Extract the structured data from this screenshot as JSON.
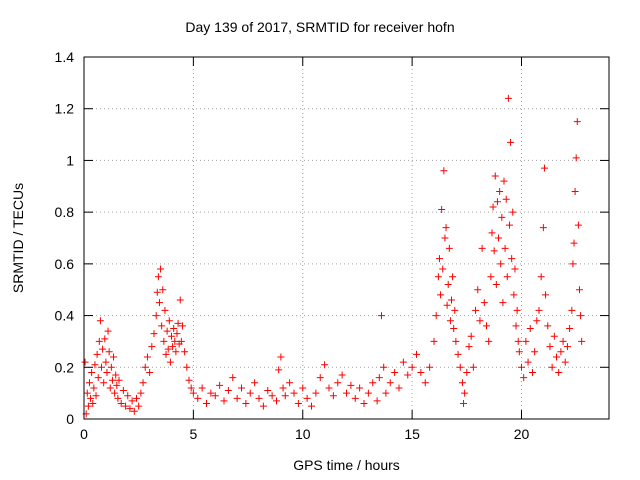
{
  "chart_data": {
    "type": "scatter",
    "title": "Day 139 of 2017, SRMTID for receiver hofn",
    "xlabel": "GPS time / hours",
    "ylabel": "SRMTID / TECUs",
    "xlim": [
      0,
      24
    ],
    "ylim": [
      0,
      1.4
    ],
    "xticks": [
      0,
      5,
      10,
      15,
      20
    ],
    "yticks": [
      0,
      0.2,
      0.4,
      0.6,
      0.8,
      1,
      1.2,
      1.4
    ],
    "ytick_labels": [
      "0",
      "0.2",
      "0.4",
      "0.6",
      "0.8",
      "1",
      "1.2",
      "1.4"
    ],
    "grid": true,
    "marker": "+",
    "color": "#ff0000",
    "series": [
      {
        "name": "SRMTID",
        "points": [
          [
            0.05,
            0.22
          ],
          [
            0.1,
            0.02
          ],
          [
            0.15,
            0.1
          ],
          [
            0.2,
            0.05
          ],
          [
            0.25,
            0.14
          ],
          [
            0.3,
            0.08
          ],
          [
            0.35,
            0.18
          ],
          [
            0.4,
            0.06
          ],
          [
            0.45,
            0.12
          ],
          [
            0.5,
            0.21
          ],
          [
            0.55,
            0.09
          ],
          [
            0.6,
            0.25
          ],
          [
            0.65,
            0.16
          ],
          [
            0.7,
            0.3
          ],
          [
            0.75,
            0.38
          ],
          [
            0.8,
            0.2
          ],
          [
            0.85,
            0.27
          ],
          [
            0.9,
            0.14
          ],
          [
            0.95,
            0.31
          ],
          [
            1.0,
            0.22
          ],
          [
            1.05,
            0.18
          ],
          [
            1.1,
            0.34
          ],
          [
            1.15,
            0.26
          ],
          [
            1.2,
            0.12
          ],
          [
            1.25,
            0.2
          ],
          [
            1.3,
            0.15
          ],
          [
            1.35,
            0.24
          ],
          [
            1.4,
            0.1
          ],
          [
            1.45,
            0.17
          ],
          [
            1.5,
            0.13
          ],
          [
            1.55,
            0.08
          ],
          [
            1.6,
            0.15
          ],
          [
            1.7,
            0.06
          ],
          [
            1.8,
            0.11
          ],
          [
            1.9,
            0.05
          ],
          [
            2.0,
            0.09
          ],
          [
            2.1,
            0.04
          ],
          [
            2.2,
            0.07
          ],
          [
            2.3,
            0.03
          ],
          [
            2.4,
            0.08
          ],
          [
            2.5,
            0.05
          ],
          [
            2.6,
            0.1
          ],
          [
            2.7,
            0.14
          ],
          [
            2.8,
            0.2
          ],
          [
            2.9,
            0.24
          ],
          [
            3.0,
            0.18
          ],
          [
            3.1,
            0.28
          ],
          [
            3.2,
            0.33
          ],
          [
            3.3,
            0.4
          ],
          [
            3.35,
            0.49
          ],
          [
            3.4,
            0.55
          ],
          [
            3.45,
            0.45
          ],
          [
            3.5,
            0.58
          ],
          [
            3.55,
            0.36
          ],
          [
            3.6,
            0.5
          ],
          [
            3.65,
            0.3
          ],
          [
            3.7,
            0.42
          ],
          [
            3.75,
            0.25
          ],
          [
            3.8,
            0.34
          ],
          [
            3.85,
            0.27
          ],
          [
            3.9,
            0.38
          ],
          [
            3.95,
            0.22
          ],
          [
            4.0,
            0.32
          ],
          [
            4.05,
            0.28
          ],
          [
            4.1,
            0.35
          ],
          [
            4.15,
            0.3
          ],
          [
            4.2,
            0.26
          ],
          [
            4.25,
            0.33
          ],
          [
            4.3,
            0.37
          ],
          [
            4.35,
            0.29
          ],
          [
            4.4,
            0.46
          ],
          [
            4.45,
            0.3
          ],
          [
            4.5,
            0.36
          ],
          [
            4.6,
            0.26
          ],
          [
            4.7,
            0.2
          ],
          [
            4.8,
            0.15
          ],
          [
            4.9,
            0.12
          ],
          [
            5.0,
            0.1
          ],
          [
            5.2,
            0.08
          ],
          [
            5.4,
            0.12
          ],
          [
            5.6,
            0.06
          ],
          [
            5.8,
            0.1
          ],
          [
            6.0,
            0.09
          ],
          [
            6.2,
            0.13
          ],
          [
            6.4,
            0.07
          ],
          [
            6.6,
            0.11
          ],
          [
            6.8,
            0.16
          ],
          [
            7.0,
            0.08
          ],
          [
            7.2,
            0.12
          ],
          [
            7.4,
            0.06
          ],
          [
            7.6,
            0.1
          ],
          [
            7.8,
            0.14
          ],
          [
            8.0,
            0.08
          ],
          [
            8.2,
            0.05
          ],
          [
            8.4,
            0.11
          ],
          [
            8.6,
            0.09
          ],
          [
            8.8,
            0.07
          ],
          [
            8.9,
            0.19
          ],
          [
            9.0,
            0.24
          ],
          [
            9.1,
            0.12
          ],
          [
            9.2,
            0.09
          ],
          [
            9.4,
            0.14
          ],
          [
            9.6,
            0.1
          ],
          [
            9.8,
            0.06
          ],
          [
            10.0,
            0.12
          ],
          [
            10.2,
            0.08
          ],
          [
            10.4,
            0.05
          ],
          [
            10.6,
            0.1
          ],
          [
            10.8,
            0.16
          ],
          [
            11.0,
            0.21
          ],
          [
            11.2,
            0.12
          ],
          [
            11.4,
            0.09
          ],
          [
            11.6,
            0.14
          ],
          [
            11.8,
            0.17
          ],
          [
            12.0,
            0.1
          ],
          [
            12.2,
            0.13
          ],
          [
            12.4,
            0.08
          ],
          [
            12.6,
            0.12
          ],
          [
            12.8,
            0.06
          ],
          [
            13.0,
            0.1
          ],
          [
            13.2,
            0.14
          ],
          [
            13.4,
            0.07
          ],
          [
            13.5,
            0.16
          ],
          [
            13.6,
            0.4
          ],
          [
            13.7,
            0.2
          ],
          [
            13.8,
            0.1
          ],
          [
            14.0,
            0.14
          ],
          [
            14.2,
            0.18
          ],
          [
            14.4,
            0.12
          ],
          [
            14.6,
            0.22
          ],
          [
            14.8,
            0.17
          ],
          [
            15.0,
            0.2
          ],
          [
            15.2,
            0.25
          ],
          [
            15.4,
            0.18
          ],
          [
            15.6,
            0.14
          ],
          [
            15.8,
            0.2
          ],
          [
            16.0,
            0.3
          ],
          [
            16.1,
            0.4
          ],
          [
            16.2,
            0.55
          ],
          [
            16.25,
            0.62
          ],
          [
            16.3,
            0.48
          ],
          [
            16.35,
            0.81
          ],
          [
            16.4,
            0.58
          ],
          [
            16.45,
            0.96
          ],
          [
            16.5,
            0.7
          ],
          [
            16.55,
            0.74
          ],
          [
            16.6,
            0.44
          ],
          [
            16.65,
            0.52
          ],
          [
            16.7,
            0.66
          ],
          [
            16.75,
            0.38
          ],
          [
            16.8,
            0.46
          ],
          [
            16.85,
            0.55
          ],
          [
            16.9,
            0.35
          ],
          [
            16.95,
            0.42
          ],
          [
            17.0,
            0.3
          ],
          [
            17.1,
            0.25
          ],
          [
            17.2,
            0.2
          ],
          [
            17.3,
            0.14
          ],
          [
            17.35,
            0.06
          ],
          [
            17.4,
            0.1
          ],
          [
            17.5,
            0.18
          ],
          [
            17.6,
            0.28
          ],
          [
            17.7,
            0.32
          ],
          [
            17.8,
            0.2
          ],
          [
            17.9,
            0.42
          ],
          [
            18.0,
            0.5
          ],
          [
            18.1,
            0.38
          ],
          [
            18.2,
            0.66
          ],
          [
            18.3,
            0.45
          ],
          [
            18.4,
            0.36
          ],
          [
            18.5,
            0.3
          ],
          [
            18.6,
            0.55
          ],
          [
            18.65,
            0.72
          ],
          [
            18.7,
            0.82
          ],
          [
            18.75,
            0.65
          ],
          [
            18.8,
            0.94
          ],
          [
            18.85,
            0.52
          ],
          [
            18.9,
            0.84
          ],
          [
            18.95,
            0.7
          ],
          [
            19.0,
            0.88
          ],
          [
            19.05,
            0.6
          ],
          [
            19.1,
            0.78
          ],
          [
            19.15,
            0.45
          ],
          [
            19.2,
            0.92
          ],
          [
            19.25,
            0.66
          ],
          [
            19.3,
            0.85
          ],
          [
            19.35,
            0.55
          ],
          [
            19.4,
            1.24
          ],
          [
            19.45,
            0.75
          ],
          [
            19.5,
            1.07
          ],
          [
            19.55,
            0.62
          ],
          [
            19.6,
            0.8
          ],
          [
            19.65,
            0.48
          ],
          [
            19.7,
            0.58
          ],
          [
            19.75,
            0.36
          ],
          [
            19.8,
            0.42
          ],
          [
            19.85,
            0.3
          ],
          [
            19.9,
            0.26
          ],
          [
            20.0,
            0.2
          ],
          [
            20.1,
            0.16
          ],
          [
            20.2,
            0.3
          ],
          [
            20.3,
            0.22
          ],
          [
            20.4,
            0.35
          ],
          [
            20.5,
            0.18
          ],
          [
            20.6,
            0.26
          ],
          [
            20.7,
            0.38
          ],
          [
            20.8,
            0.42
          ],
          [
            20.9,
            0.55
          ],
          [
            21.0,
            0.74
          ],
          [
            21.05,
            0.97
          ],
          [
            21.1,
            0.48
          ],
          [
            21.2,
            0.36
          ],
          [
            21.3,
            0.28
          ],
          [
            21.4,
            0.2
          ],
          [
            21.5,
            0.32
          ],
          [
            21.6,
            0.24
          ],
          [
            21.7,
            0.18
          ],
          [
            21.8,
            0.26
          ],
          [
            21.9,
            0.3
          ],
          [
            22.0,
            0.22
          ],
          [
            22.1,
            0.28
          ],
          [
            22.2,
            0.35
          ],
          [
            22.3,
            0.42
          ],
          [
            22.35,
            0.6
          ],
          [
            22.4,
            0.68
          ],
          [
            22.45,
            0.88
          ],
          [
            22.5,
            1.01
          ],
          [
            22.55,
            1.15
          ],
          [
            22.6,
            0.75
          ],
          [
            22.65,
            0.5
          ],
          [
            22.7,
            0.4
          ],
          [
            22.75,
            0.3
          ]
        ]
      }
    ]
  }
}
